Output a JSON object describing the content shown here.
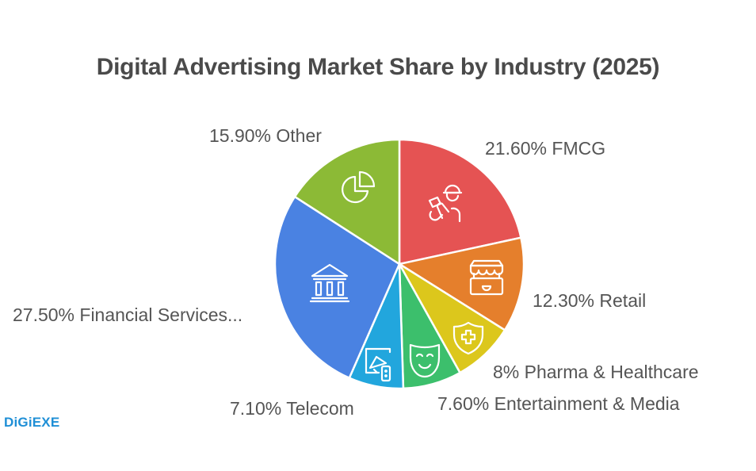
{
  "title": "Digital Advertising Market Share by Industry (2025)",
  "logo": "DiGiEXE",
  "chart_data": {
    "type": "pie",
    "title": "Digital Advertising Market Share by Industry (2025)",
    "start_angle": "12 o'clock, clockwise",
    "categories": [
      "FMCG",
      "Retail",
      "Pharma & Healthcare",
      "Entertainment & Media",
      "Telecom",
      "Financial Services...",
      "Other"
    ],
    "values": [
      21.6,
      12.3,
      8,
      7.6,
      7.1,
      27.5,
      15.9
    ],
    "colors": [
      "#e55353",
      "#e57f2c",
      "#dcc71c",
      "#3cbf6c",
      "#22a6dd",
      "#4a82e2",
      "#8cba36"
    ],
    "icons": [
      "delivery-person-icon",
      "storefront-icon",
      "health-shield-icon",
      "theater-mask-icon",
      "megaphone-screen-icon",
      "bank-icon",
      "pie-chart-icon"
    ],
    "labels": [
      "21.60% FMCG",
      "12.30% Retail",
      "8% Pharma & Healthcare",
      "7.60% Entertainment & Media",
      "7.10% Telecom",
      "27.50% Financial Services...",
      "15.90% Other"
    ],
    "legend": "none (direct labels)",
    "grid": false
  },
  "labels": {
    "fmcg": "21.60% FMCG",
    "retail": "12.30% Retail",
    "pharma": "8% Pharma & Healthcare",
    "entertainment": "7.60% Entertainment & Media",
    "telecom": "7.10% Telecom",
    "financial": "27.50% Financial Services...",
    "other": "15.90% Other"
  }
}
